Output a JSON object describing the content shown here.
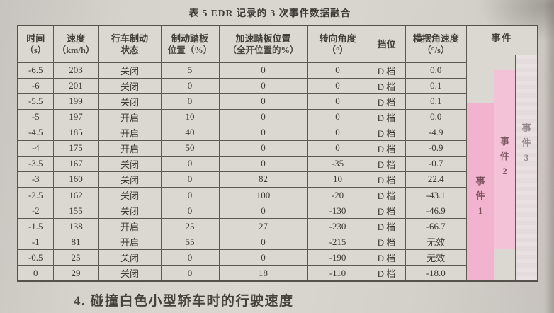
{
  "title": "表 5 EDR 记录的 3 次事件数据融合",
  "caption": "4. 碰撞白色小型轿车时的行驶速度",
  "table": {
    "headers": [
      {
        "line1": "时间",
        "line2": "（s）"
      },
      {
        "line1": "速度",
        "line2": "（km/h）"
      },
      {
        "line1": "行车制动",
        "line2": "状态"
      },
      {
        "line1": "制动踏板",
        "line2": "位置（%）"
      },
      {
        "line1": "加速踏板位置",
        "line2": "（全开位置的%）"
      },
      {
        "line1": "转向角度",
        "line2": "（°）"
      },
      {
        "line1": "挡位",
        "line2": ""
      },
      {
        "line1": "横摆角速度",
        "line2": "（°/s）"
      }
    ],
    "rows": [
      [
        "-6.5",
        "203",
        "关闭",
        "5",
        "0",
        "0",
        "D 档",
        "0.0"
      ],
      [
        "-6",
        "201",
        "关闭",
        "0",
        "0",
        "0",
        "D 档",
        "0.1"
      ],
      [
        "-5.5",
        "199",
        "关闭",
        "0",
        "0",
        "0",
        "D 档",
        "0.1"
      ],
      [
        "-5",
        "197",
        "开启",
        "10",
        "0",
        "0",
        "D 档",
        "0.0"
      ],
      [
        "-4.5",
        "185",
        "开启",
        "40",
        "0",
        "0",
        "D 档",
        "-4.9"
      ],
      [
        "-4",
        "175",
        "开启",
        "50",
        "0",
        "0",
        "D 档",
        "-0.9"
      ],
      [
        "-3.5",
        "167",
        "关闭",
        "0",
        "0",
        "-35",
        "D 档",
        "-0.7"
      ],
      [
        "-3",
        "160",
        "关闭",
        "0",
        "82",
        "10",
        "D 档",
        "22.4"
      ],
      [
        "-2.5",
        "162",
        "关闭",
        "0",
        "100",
        "-20",
        "D 档",
        "-43.1"
      ],
      [
        "-2",
        "155",
        "关闭",
        "0",
        "0",
        "-130",
        "D 档",
        "-46.9"
      ],
      [
        "-1.5",
        "138",
        "开启",
        "25",
        "27",
        "-230",
        "D 档",
        "-66.7"
      ],
      [
        "-1",
        "81",
        "开启",
        "55",
        "0",
        "-215",
        "D 档",
        "无效"
      ],
      [
        "-0.5",
        "25",
        "关闭",
        "0",
        "0",
        "-190",
        "D 档",
        "无效"
      ],
      [
        "0",
        "29",
        "关闭",
        "0",
        "18",
        "-110",
        "D 档",
        "-18.0"
      ]
    ]
  },
  "event_area": {
    "header": "事件",
    "columns": [
      {
        "label": "事件1",
        "chars": [
          "事",
          "件",
          "1"
        ],
        "highlight_color": "#f1b3cd"
      },
      {
        "label": "事件2",
        "chars": [
          "事",
          "件",
          "2"
        ],
        "highlight_color": "#f4c2d6"
      },
      {
        "label": "事件3",
        "chars": [
          "事",
          "件",
          "3"
        ],
        "highlight_color": "#e9e1e1"
      }
    ]
  },
  "colors": {
    "paper": "#d6d2cc",
    "table_background": "#dbd7d1",
    "border": "#5d5952",
    "text": "#3b3934",
    "event1_pink": "#f1b3cd",
    "event2_pink": "#f4c2d6"
  }
}
